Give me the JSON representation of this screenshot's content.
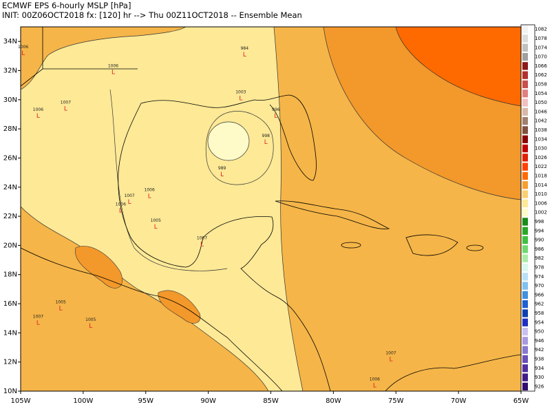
{
  "map": {
    "title": "ECMWF EPS 6-hourly MSLP [hPa]",
    "subtitle": "INIT: 00Z06OCT2018 fx: [120] hr --> Thu 00Z11OCT2018 -- Ensemble Mean",
    "lonlim": [
      -105,
      -65
    ],
    "latlim": [
      10,
      35
    ],
    "lonticks": [
      {
        "value": -105,
        "label": "105W"
      },
      {
        "value": -100,
        "label": "100W"
      },
      {
        "value": -95,
        "label": "95W"
      },
      {
        "value": -90,
        "label": "90W"
      },
      {
        "value": -85,
        "label": "85W"
      },
      {
        "value": -80,
        "label": "80W"
      },
      {
        "value": -75,
        "label": "75W"
      },
      {
        "value": -70,
        "label": "70W"
      },
      {
        "value": -65,
        "label": "65W"
      }
    ],
    "latticks": [
      {
        "value": 10,
        "label": "10N"
      },
      {
        "value": 12,
        "label": "12N"
      },
      {
        "value": 14,
        "label": "14N"
      },
      {
        "value": 16,
        "label": "16N"
      },
      {
        "value": 18,
        "label": "18N"
      },
      {
        "value": 20,
        "label": "20N"
      },
      {
        "value": 22,
        "label": "22N"
      },
      {
        "value": 24,
        "label": "24N"
      },
      {
        "value": 26,
        "label": "26N"
      },
      {
        "value": 28,
        "label": "28N"
      },
      {
        "value": 30,
        "label": "30N"
      },
      {
        "value": 32,
        "label": "32N"
      },
      {
        "value": 34,
        "label": "34N"
      }
    ],
    "colorbar": {
      "levels": [
        1082,
        1078,
        1074,
        1070,
        1066,
        1062,
        1058,
        1054,
        1050,
        1046,
        1042,
        1038,
        1034,
        1030,
        1026,
        1022,
        1018,
        1014,
        1010,
        1006,
        1002,
        998,
        994,
        990,
        986,
        982,
        978,
        974,
        970,
        966,
        962,
        958,
        954,
        950,
        946,
        942,
        938,
        934,
        930,
        926
      ],
      "colors": [
        "#f2f2f2",
        "#dcdcdc",
        "#c0c0c0",
        "#a0a0a0",
        "#8b1a1a",
        "#b03030",
        "#c85050",
        "#e08080",
        "#f0c0c0",
        "#d8b8a8",
        "#a08070",
        "#805040",
        "#8b0000",
        "#c00000",
        "#e02000",
        "#ff4000",
        "#ff6a00",
        "#f5a030",
        "#fbd070",
        "#fde996",
        "#fffbc8",
        "#1a8c1a",
        "#28a828",
        "#40c040",
        "#70d870",
        "#a8eca8",
        "#d8f8f0",
        "#b8e0f8",
        "#80c0f0",
        "#4090e0",
        "#2060d0",
        "#1040b0",
        "#2030c0",
        "#c8c0f0",
        "#a898e0",
        "#8878d0",
        "#6850b8",
        "#5030a0",
        "#401c88",
        "#300c70"
      ]
    },
    "low_symbol": "L",
    "lows": [
      {
        "pressure": 1006,
        "lon": -104.8,
        "lat": 33.6
      },
      {
        "pressure": 1006,
        "lon": -97.6,
        "lat": 32.3
      },
      {
        "pressure": 984,
        "lon": -87.1,
        "lat": 33.5
      },
      {
        "pressure": 1007,
        "lon": -101.4,
        "lat": 29.8
      },
      {
        "pressure": 1006,
        "lon": -103.6,
        "lat": 29.3
      },
      {
        "pressure": 1003,
        "lon": -87.4,
        "lat": 30.5
      },
      {
        "pressure": 996,
        "lon": -84.6,
        "lat": 29.3
      },
      {
        "pressure": 998,
        "lon": -85.4,
        "lat": 27.5
      },
      {
        "pressure": 989,
        "lon": -88.9,
        "lat": 25.3
      },
      {
        "pressure": 1006,
        "lon": -94.7,
        "lat": 23.8
      },
      {
        "pressure": 1007,
        "lon": -96.3,
        "lat": 23.4
      },
      {
        "pressure": 1006,
        "lon": -97,
        "lat": 22.8
      },
      {
        "pressure": 1005,
        "lon": -94.2,
        "lat": 21.7
      },
      {
        "pressure": 1007,
        "lon": -90.5,
        "lat": 20.5
      },
      {
        "pressure": 1005,
        "lon": -101.8,
        "lat": 16.1
      },
      {
        "pressure": 1007,
        "lon": -103.6,
        "lat": 15.1
      },
      {
        "pressure": 1005,
        "lon": -99.4,
        "lat": 14.9
      },
      {
        "pressure": 1007,
        "lon": -75.4,
        "lat": 12.6
      },
      {
        "pressure": 1006,
        "lon": -76.7,
        "lat": 10.8
      }
    ]
  }
}
